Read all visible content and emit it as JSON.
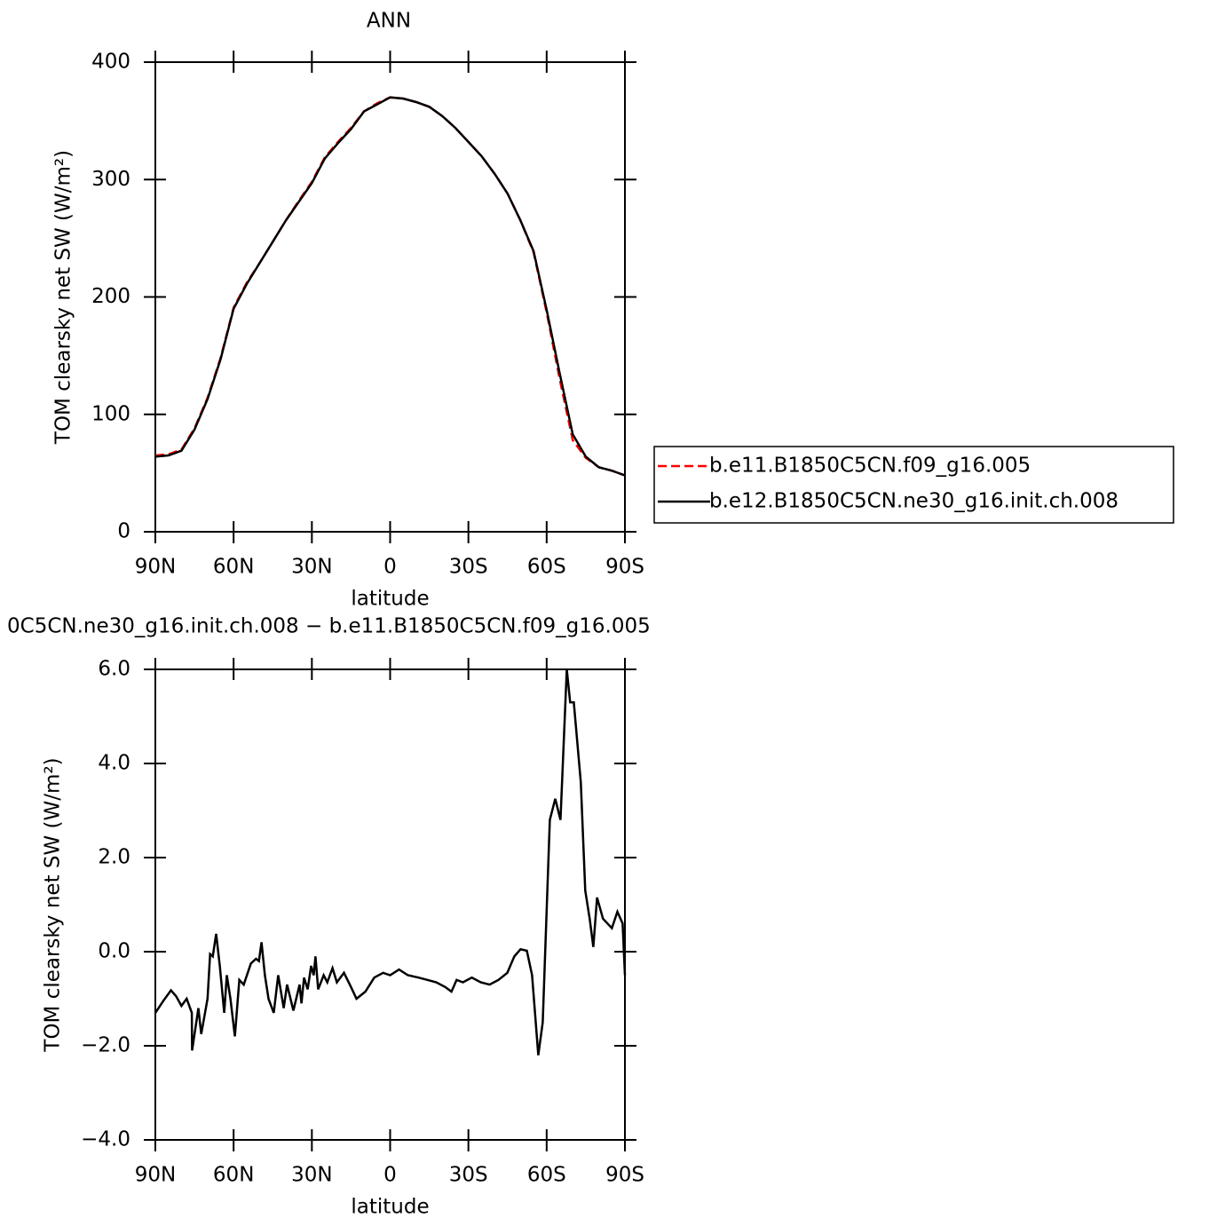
{
  "chart_data": [
    {
      "type": "line",
      "title": "ANN",
      "xlabel": "latitude",
      "ylabel": "TOM clearsky net SW (W/m²)",
      "x": [
        90,
        85,
        80,
        75,
        70,
        65,
        60,
        55,
        50,
        45,
        40,
        35,
        30,
        25,
        20,
        15,
        10,
        5,
        0,
        -5,
        -10,
        -15,
        -20,
        -25,
        -30,
        -35,
        -40,
        -45,
        -50,
        -55,
        -60,
        -65,
        -70,
        -75,
        -80,
        -85,
        -90
      ],
      "series": [
        {
          "name": "b.e11.B1850C5CN.f09_g16.005",
          "color": "#ff0000",
          "dash": true,
          "values": [
            65,
            66,
            70,
            88,
            114,
            148,
            191,
            212,
            229,
            247,
            265,
            282,
            298,
            319,
            332,
            344,
            358,
            365,
            370,
            369,
            366,
            362,
            354,
            344,
            332,
            320,
            305,
            288,
            265,
            238,
            187,
            130,
            78,
            63,
            55,
            52,
            48
          ]
        },
        {
          "name": "b.e12.B1850C5CN.ne30_g16.init.ch.008",
          "color": "#000000",
          "dash": false,
          "values": [
            64,
            65,
            69,
            87,
            113,
            147,
            190,
            211,
            229,
            247,
            265,
            281,
            297,
            318,
            331,
            343,
            358,
            364,
            370,
            369,
            366,
            362,
            354,
            344,
            332,
            320,
            305,
            288,
            265,
            239,
            189,
            135,
            83,
            64,
            55,
            52,
            48
          ]
        }
      ],
      "xlim": [
        90,
        -90
      ],
      "xticks": [
        {
          "value": 90,
          "label": "90N"
        },
        {
          "value": 60,
          "label": "60N"
        },
        {
          "value": 30,
          "label": "30N"
        },
        0,
        {
          "value": -30,
          "label": "30S"
        },
        {
          "value": -60,
          "label": "60S"
        },
        {
          "value": -90,
          "label": "90S"
        }
      ],
      "ylim": [
        0,
        400
      ],
      "yticks": [
        0,
        100,
        200,
        300,
        400
      ],
      "legend": "right"
    },
    {
      "type": "line",
      "title": "0C5CN.ne30_g16.init.ch.008 − b.e11.B1850C5CN.f09_g16.005",
      "xlabel": "latitude",
      "ylabel": "TOM clearsky net SW (W/m²)",
      "x": [
        90,
        87,
        84,
        82,
        80,
        78,
        76,
        75.9,
        73.5,
        72.4,
        70,
        69,
        68,
        66.7,
        65.3,
        63.6,
        62.6,
        61.2,
        59.5,
        57.8,
        56.1,
        53.4,
        51.4,
        50.3,
        49.3,
        48,
        46.6,
        44.6,
        42.9,
        40.8,
        39.5,
        37.1,
        34.7,
        34,
        33,
        31.6,
        30.3,
        29.3,
        28.6,
        27.6,
        25.5,
        24.1,
        22.1,
        20.4,
        17.7,
        15,
        12.9,
        9.5,
        6.1,
        2.7,
        0,
        -3.4,
        -6.8,
        -10.9,
        -14.3,
        -17.7,
        -21.1,
        -23.5,
        -25.5,
        -27.9,
        -31.3,
        -34.7,
        -38.1,
        -41.5,
        -44.9,
        -47.6,
        -50,
        -52.4,
        -54.4,
        -56.8,
        -58.5,
        -61.2,
        -63.3,
        -65.3,
        -67.7,
        -69,
        -70.4,
        -73.1,
        -74.8,
        -76.5,
        -77.9,
        -79.3,
        -81.6,
        -83.3,
        -85,
        -87.1,
        -89.1,
        -90
      ],
      "series": [
        {
          "color": "#000000",
          "dash": false,
          "values": [
            -1.3,
            -1.05,
            -0.82,
            -0.95,
            -1.15,
            -1.0,
            -1.3,
            -2.1,
            -1.2,
            -1.75,
            -1.0,
            -0.05,
            -0.1,
            0.38,
            -0.3,
            -1.3,
            -0.5,
            -1.0,
            -1.8,
            -0.6,
            -0.7,
            -0.25,
            -0.15,
            -0.2,
            0.2,
            -0.5,
            -1.0,
            -1.3,
            -0.5,
            -1.2,
            -0.7,
            -1.25,
            -0.7,
            -1.1,
            -0.55,
            -0.8,
            -0.3,
            -0.5,
            -0.1,
            -0.8,
            -0.5,
            -0.65,
            -0.35,
            -0.65,
            -0.45,
            -0.75,
            -1.0,
            -0.85,
            -0.55,
            -0.45,
            -0.5,
            -0.38,
            -0.5,
            -0.55,
            -0.6,
            -0.65,
            -0.75,
            -0.85,
            -0.6,
            -0.65,
            -0.55,
            -0.65,
            -0.7,
            -0.6,
            -0.45,
            -0.1,
            0.05,
            0.02,
            -0.5,
            -2.2,
            -1.5,
            2.8,
            3.25,
            2.8,
            6.0,
            5.3,
            5.3,
            3.6,
            1.3,
            0.7,
            0.1,
            1.15,
            0.7,
            0.6,
            0.5,
            0.85,
            0.6,
            -0.5
          ]
        }
      ],
      "xlim": [
        90,
        -90
      ],
      "xticks": [
        {
          "value": 90,
          "label": "90N"
        },
        {
          "value": 60,
          "label": "60N"
        },
        {
          "value": 30,
          "label": "30N"
        },
        0,
        {
          "value": -30,
          "label": "30S"
        },
        {
          "value": -60,
          "label": "60S"
        },
        {
          "value": -90,
          "label": "90S"
        }
      ],
      "ylim": [
        -4,
        6
      ],
      "yticks": [
        {
          "value": -4,
          "label": "−4.0"
        },
        {
          "value": -2,
          "label": "−2.0"
        },
        {
          "value": 0,
          "label": "0.0"
        },
        {
          "value": 2,
          "label": "2.0"
        },
        {
          "value": 4,
          "label": "4.0"
        },
        {
          "value": 6,
          "label": "6.0"
        }
      ]
    }
  ]
}
